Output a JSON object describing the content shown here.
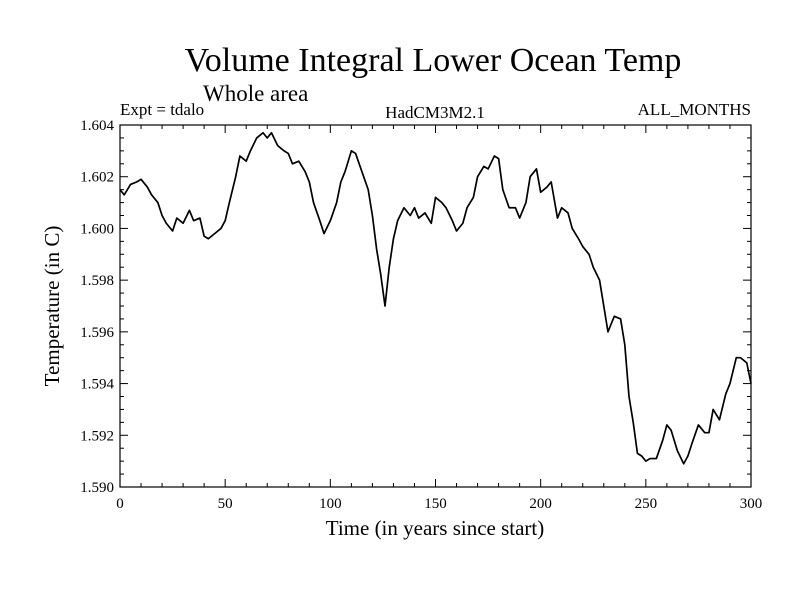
{
  "chart_data": {
    "type": "line",
    "title": "Volume Integral Lower Ocean Temp",
    "subtitle": "Whole area",
    "expt_label": "Expt = tdalo",
    "model_label": "HadCM3M2.1",
    "months_label": "ALL_MONTHS",
    "xlabel": "Time (in years since start)",
    "ylabel": "Temperature (in C)",
    "xlim": [
      0,
      300
    ],
    "ylim": [
      1.59,
      1.604
    ],
    "x_ticks": [
      0,
      50,
      100,
      150,
      200,
      250,
      300
    ],
    "x_tick_labels": [
      "0",
      "50",
      "100",
      "150",
      "200",
      "250",
      "300"
    ],
    "y_ticks": [
      1.59,
      1.592,
      1.594,
      1.596,
      1.598,
      1.6,
      1.602,
      1.604
    ],
    "y_tick_labels": [
      "1.590",
      "1.592",
      "1.594",
      "1.596",
      "1.598",
      "1.600",
      "1.602",
      "1.604"
    ],
    "grid": false,
    "series": [
      {
        "name": "Volume Integral Lower Ocean Temp",
        "color": "#000000",
        "x": [
          0,
          2,
          5,
          8,
          10,
          13,
          15,
          18,
          20,
          22,
          25,
          27,
          30,
          33,
          35,
          38,
          40,
          42,
          45,
          48,
          50,
          52,
          55,
          57,
          60,
          62,
          65,
          68,
          70,
          72,
          75,
          78,
          80,
          82,
          85,
          88,
          90,
          92,
          95,
          97,
          100,
          103,
          105,
          107,
          110,
          112,
          115,
          118,
          120,
          122,
          124,
          126,
          128,
          130,
          132,
          135,
          138,
          140,
          142,
          145,
          148,
          150,
          153,
          155,
          158,
          160,
          163,
          165,
          168,
          170,
          173,
          175,
          178,
          180,
          182,
          185,
          188,
          190,
          193,
          195,
          198,
          200,
          203,
          205,
          208,
          210,
          213,
          215,
          218,
          220,
          223,
          225,
          228,
          230,
          232,
          235,
          238,
          240,
          242,
          244,
          246,
          248,
          250,
          252,
          255,
          258,
          260,
          262,
          265,
          268,
          270,
          272,
          275,
          278,
          280,
          282,
          285,
          288,
          290,
          293,
          295,
          298,
          300
        ],
        "values": [
          1.6015,
          1.6013,
          1.6017,
          1.6018,
          1.6019,
          1.6016,
          1.6013,
          1.601,
          1.6005,
          1.6002,
          1.5999,
          1.6004,
          1.6002,
          1.6007,
          1.6003,
          1.6004,
          1.5997,
          1.5996,
          1.5998,
          1.6,
          1.6003,
          1.601,
          1.602,
          1.6028,
          1.6026,
          1.603,
          1.6035,
          1.6037,
          1.6035,
          1.6037,
          1.6032,
          1.603,
          1.6029,
          1.6025,
          1.6026,
          1.6022,
          1.6018,
          1.601,
          1.6003,
          1.5998,
          1.6003,
          1.601,
          1.6018,
          1.6022,
          1.603,
          1.6029,
          1.6022,
          1.6015,
          1.6005,
          1.5992,
          1.5982,
          1.597,
          1.5985,
          1.5996,
          1.6003,
          1.6008,
          1.6005,
          1.6008,
          1.6004,
          1.6006,
          1.6002,
          1.6012,
          1.601,
          1.6008,
          1.6003,
          1.5999,
          1.6002,
          1.6008,
          1.6012,
          1.602,
          1.6024,
          1.6023,
          1.6028,
          1.6027,
          1.6015,
          1.6008,
          1.6008,
          1.6004,
          1.601,
          1.602,
          1.6023,
          1.6014,
          1.6016,
          1.6018,
          1.6004,
          1.6008,
          1.6006,
          1.6,
          1.5996,
          1.5993,
          1.599,
          1.5985,
          1.598,
          1.597,
          1.596,
          1.5966,
          1.5965,
          1.5955,
          1.5935,
          1.5925,
          1.5913,
          1.5912,
          1.591,
          1.5911,
          1.5911,
          1.5918,
          1.5924,
          1.5922,
          1.5914,
          1.5909,
          1.5912,
          1.5917,
          1.5924,
          1.5921,
          1.5921,
          1.593,
          1.5926,
          1.5936,
          1.594,
          1.595,
          1.595,
          1.5948,
          1.594
        ]
      }
    ]
  }
}
